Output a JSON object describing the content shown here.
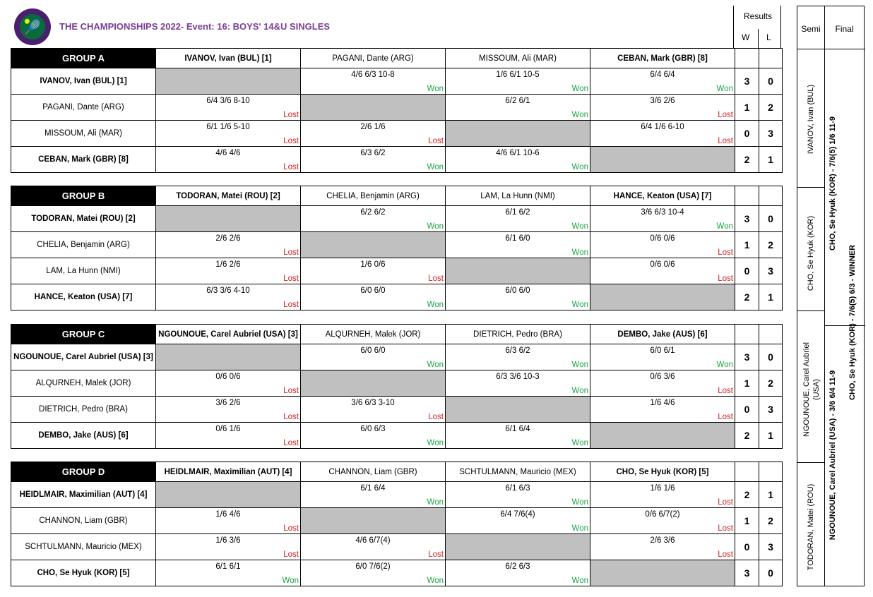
{
  "header": {
    "title": "THE CHAMPIONSHIPS 2022- Event: 16: BOYS' 14&U SINGLES",
    "logo_icon": "wimbledon-logo-icon"
  },
  "results_header": {
    "title": "Results",
    "w": "W",
    "l": "L"
  },
  "groups": [
    {
      "name": "GROUP A",
      "players": [
        {
          "name": "IVANOV, Ivan (BUL) [1]",
          "bold": true
        },
        {
          "name": "PAGANI, Dante (ARG)",
          "bold": false
        },
        {
          "name": "MISSOUM, Ali (MAR)",
          "bold": false
        },
        {
          "name": "CEBAN, Mark (GBR) [8]",
          "bold": true
        }
      ],
      "results": [
        [
          null,
          {
            "score": "4/6 6/3 10-8",
            "status": "Won"
          },
          {
            "score": "1/6 6/1 10-5",
            "status": "Won"
          },
          {
            "score": "6/4 6/4",
            "status": "Won"
          }
        ],
        [
          {
            "score": "6/4 3/6 8-10",
            "status": "Lost"
          },
          null,
          {
            "score": "6/2 6/1",
            "status": "Won"
          },
          {
            "score": "3/6 2/6",
            "status": "Lost"
          }
        ],
        [
          {
            "score": "6/1 1/6 5-10",
            "status": "Lost"
          },
          {
            "score": "2/6 1/6",
            "status": "Lost"
          },
          null,
          {
            "score": "6/4 1/6 6-10",
            "status": "Lost"
          }
        ],
        [
          {
            "score": "4/6 4/6",
            "status": "Lost"
          },
          {
            "score": "6/3 6/2",
            "status": "Won"
          },
          {
            "score": "4/6 6/1 10-6",
            "status": "Won"
          },
          null
        ]
      ],
      "wins": [
        "3",
        "1",
        "0",
        "2"
      ],
      "losses": [
        "0",
        "2",
        "3",
        "1"
      ]
    },
    {
      "name": "GROUP B",
      "players": [
        {
          "name": "TODORAN, Matei (ROU) [2]",
          "bold": true
        },
        {
          "name": "CHELIA, Benjamin (ARG)",
          "bold": false
        },
        {
          "name": "LAM, La Hunn (NMI)",
          "bold": false
        },
        {
          "name": "HANCE, Keaton (USA) [7]",
          "bold": true
        }
      ],
      "results": [
        [
          null,
          {
            "score": "6/2 6/2",
            "status": "Won"
          },
          {
            "score": "6/1 6/2",
            "status": "Won"
          },
          {
            "score": "3/6 6/3 10-4",
            "status": "Won"
          }
        ],
        [
          {
            "score": "2/6 2/6",
            "status": "Lost"
          },
          null,
          {
            "score": "6/1 6/0",
            "status": "Won"
          },
          {
            "score": "0/6 0/6",
            "status": "Lost"
          }
        ],
        [
          {
            "score": "1/6 2/6",
            "status": "Lost"
          },
          {
            "score": "1/6 0/6",
            "status": "Lost"
          },
          null,
          {
            "score": "0/6 0/6",
            "status": "Lost"
          }
        ],
        [
          {
            "score": "6/3 3/6 4-10",
            "status": "Lost"
          },
          {
            "score": "6/0 6/0",
            "status": "Won"
          },
          {
            "score": "6/0 6/0",
            "status": "Won"
          },
          null
        ]
      ],
      "wins": [
        "3",
        "1",
        "0",
        "2"
      ],
      "losses": [
        "0",
        "2",
        "3",
        "1"
      ]
    },
    {
      "name": "GROUP C",
      "players": [
        {
          "name": "NGOUNOUE, Carel Aubriel (USA) [3]",
          "bold": true
        },
        {
          "name": "ALQURNEH, Malek (JOR)",
          "bold": false
        },
        {
          "name": "DIETRICH, Pedro (BRA)",
          "bold": false
        },
        {
          "name": "DEMBO, Jake (AUS) [6]",
          "bold": true
        }
      ],
      "results": [
        [
          null,
          {
            "score": "6/0 6/0",
            "status": "Won"
          },
          {
            "score": "6/3 6/2",
            "status": "Won"
          },
          {
            "score": "6/0 6/1",
            "status": "Won"
          }
        ],
        [
          {
            "score": "0/6 0/6",
            "status": "Lost"
          },
          null,
          {
            "score": "6/3 3/6 10-3",
            "status": "Won"
          },
          {
            "score": "0/6 3/6",
            "status": "Lost"
          }
        ],
        [
          {
            "score": "3/6 2/6",
            "status": "Lost"
          },
          {
            "score": "3/6 6/3 3-10",
            "status": "Lost"
          },
          null,
          {
            "score": "1/6 4/6",
            "status": "Lost"
          }
        ],
        [
          {
            "score": "0/6 1/6",
            "status": "Lost"
          },
          {
            "score": "6/0 6/3",
            "status": "Won"
          },
          {
            "score": "6/1 6/4",
            "status": "Won"
          },
          null
        ]
      ],
      "wins": [
        "3",
        "1",
        "0",
        "2"
      ],
      "losses": [
        "0",
        "2",
        "3",
        "1"
      ]
    },
    {
      "name": "GROUP D",
      "players": [
        {
          "name": "HEIDLMAIR, Maximilian (AUT) [4]",
          "bold": true
        },
        {
          "name": "CHANNON, Liam (GBR)",
          "bold": false
        },
        {
          "name": "SCHTULMANN, Mauricio (MEX)",
          "bold": false
        },
        {
          "name": "CHO, Se Hyuk (KOR) [5]",
          "bold": true
        }
      ],
      "results": [
        [
          null,
          {
            "score": "6/1 6/4",
            "status": "Won"
          },
          {
            "score": "6/1 6/3",
            "status": "Won"
          },
          {
            "score": "1/6 1/6",
            "status": "Lost"
          }
        ],
        [
          {
            "score": "1/6 4/6",
            "status": "Lost"
          },
          null,
          {
            "score": "6/4 7/6(4)",
            "status": "Won"
          },
          {
            "score": "0/6 6/7(2)",
            "status": "Lost"
          }
        ],
        [
          {
            "score": "1/6 3/6",
            "status": "Lost"
          },
          {
            "score": "4/6 6/7(4)",
            "status": "Lost"
          },
          null,
          {
            "score": "2/6 3/6",
            "status": "Lost"
          }
        ],
        [
          {
            "score": "6/1 6/1",
            "status": "Won"
          },
          {
            "score": "6/0 7/6(2)",
            "status": "Won"
          },
          {
            "score": "6/2 6/3",
            "status": "Won"
          },
          null
        ]
      ],
      "wins": [
        "2",
        "1",
        "0",
        "3"
      ],
      "losses": [
        "1",
        "2",
        "3",
        "0"
      ]
    }
  ],
  "bracket": {
    "semi_label": "Semi",
    "final_label": "Final",
    "semi_players": [
      "IVANOV, Ivan (BUL)",
      "CHO, Se Hyuk (KOR)",
      "NGOUNOUE, Carel Aubriel",
      "(USA)",
      "TODORAN, Matei (ROU)"
    ],
    "semi_result_1": "CHO, Se Hyuk (KOR) - 7/6(5) 1/6 11-9",
    "semi_result_2": "NGOUNOUE, Carel Aubriel (USA) - 3/6 6/4 11-9",
    "final_result": "CHO, Se Hyuk (KOR) - 7/6(5) 6/3  -  WINNER"
  }
}
